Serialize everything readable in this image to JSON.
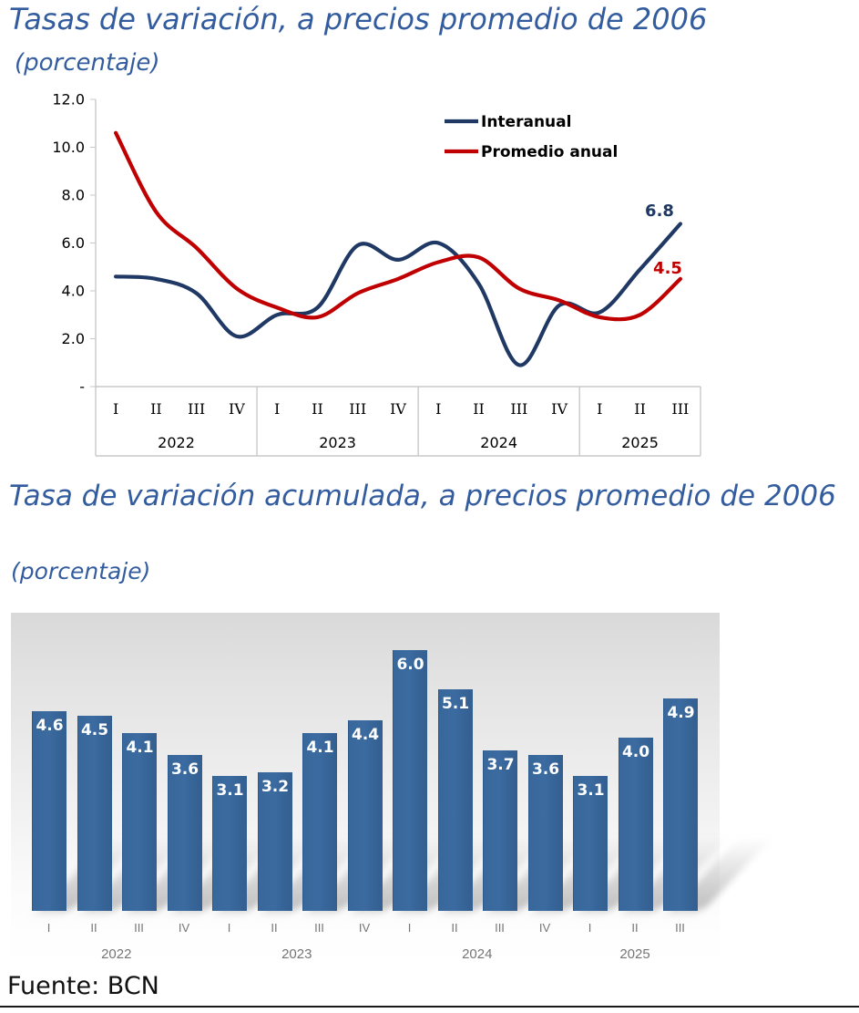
{
  "source_note": "Fuente: BCN",
  "colors": {
    "title_blue": "#335C9F",
    "interanual_line": "#1F3864",
    "promedio_line": "#C00000",
    "bar_fill": "#38679B",
    "bar_label": "#FFFFFF",
    "axis_gray": "#C9C9C9",
    "bar_axis_text": "#757575"
  },
  "chart_data": [
    {
      "type": "line",
      "title": "Tasas de variación, a precios promedio de 2006",
      "subtitle": "(porcentaje)",
      "categories": [
        "I",
        "II",
        "III",
        "IV",
        "I",
        "II",
        "III",
        "IV",
        "I",
        "II",
        "III",
        "IV",
        "I",
        "II",
        "III"
      ],
      "year_groups": [
        {
          "label": "2022",
          "count": 4
        },
        {
          "label": "2023",
          "count": 4
        },
        {
          "label": "2024",
          "count": 4
        },
        {
          "label": "2025",
          "count": 3
        }
      ],
      "y_ticks": [
        {
          "label": "12.0",
          "value": 12
        },
        {
          "label": "10.0",
          "value": 10
        },
        {
          "label": "8.0",
          "value": 8
        },
        {
          "label": "6.0",
          "value": 6
        },
        {
          "label": "4.0",
          "value": 4
        },
        {
          "label": "2.0",
          "value": 2
        },
        {
          "label": "-",
          "value": 0
        }
      ],
      "ylim": [
        0,
        12
      ],
      "grid": false,
      "legend_position": "top-right",
      "series": [
        {
          "name": "Interanual",
          "color": "#1F3864",
          "values": [
            4.6,
            4.5,
            3.9,
            2.1,
            3.0,
            3.3,
            5.9,
            5.3,
            6.0,
            4.3,
            0.9,
            3.4,
            3.1,
            4.9,
            6.8
          ],
          "end_label": "6.8"
        },
        {
          "name": "Promedio anual",
          "color": "#C00000",
          "values": [
            10.6,
            7.3,
            5.8,
            4.1,
            3.3,
            2.9,
            3.9,
            4.5,
            5.2,
            5.4,
            4.1,
            3.6,
            2.9,
            3.0,
            4.5
          ],
          "end_label": "4.5"
        }
      ]
    },
    {
      "type": "bar",
      "title": "Tasa de variación acumulada, a precios promedio de 2006",
      "subtitle": "(porcentaje)",
      "categories": [
        "I",
        "II",
        "III",
        "IV",
        "I",
        "II",
        "III",
        "IV",
        "I",
        "II",
        "III",
        "IV",
        "I",
        "II",
        "III"
      ],
      "year_groups": [
        {
          "label": "2022",
          "count": 4
        },
        {
          "label": "2023",
          "count": 4
        },
        {
          "label": "2024",
          "count": 4
        },
        {
          "label": "2025",
          "count": 3
        }
      ],
      "values": [
        4.6,
        4.5,
        4.1,
        3.6,
        3.1,
        3.2,
        4.1,
        4.4,
        6.0,
        5.1,
        3.7,
        3.6,
        3.1,
        4.0,
        4.9
      ],
      "labels": [
        "4.6",
        "4.5",
        "4.1",
        "3.6",
        "3.1",
        "3.2",
        "4.1",
        "4.4",
        "6.0",
        "5.1",
        "3.7",
        "3.6",
        "3.1",
        "4.0",
        "4.9"
      ],
      "grid": false
    }
  ]
}
